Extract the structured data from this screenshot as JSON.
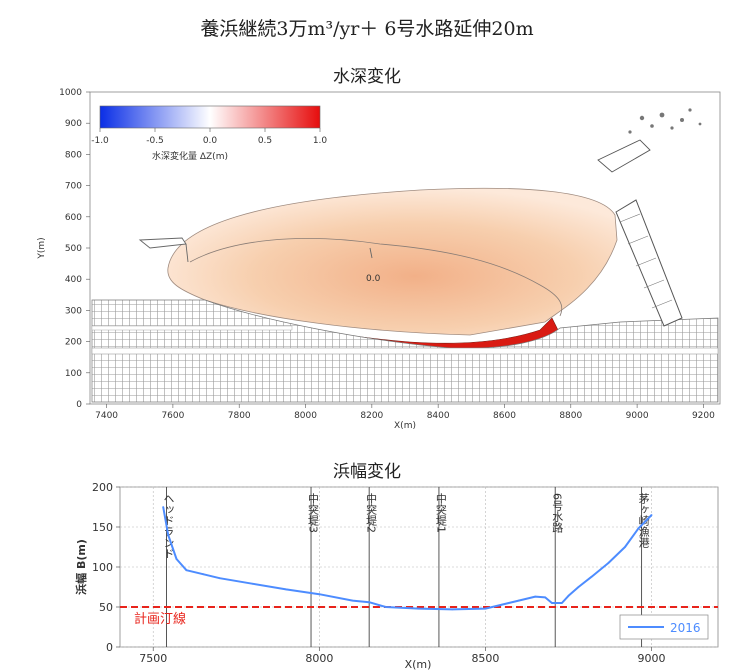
{
  "title": "養浜継続3万m³/yr＋ 6号水路延伸20m",
  "map": {
    "title": "水深変化",
    "xlabel": "X(m)",
    "ylabel": "Y(m)",
    "xticks": [
      "7400",
      "7600",
      "7800",
      "8000",
      "8200",
      "8400",
      "8600",
      "8800",
      "9000",
      "9200"
    ],
    "yticks": [
      "0",
      "100",
      "200",
      "300",
      "400",
      "500",
      "600",
      "700",
      "800",
      "900",
      "1000"
    ],
    "colorbar": {
      "ticks": [
        "-1.0",
        "-0.5",
        "0.0",
        "0.5",
        "1.0"
      ],
      "label": "水深変化量 ΔZ(m)",
      "colors": {
        "min": "#0a2ee6",
        "mid": "#ffffff",
        "max": "#e60d0d"
      }
    },
    "contour_label": "0.0",
    "accretion_color": "#d91a12"
  },
  "chart_data": {
    "type": "line",
    "title": "浜幅変化",
    "xlabel": "X(m)",
    "ylabel": "浜幅 B(m)",
    "xlim": [
      7400,
      9200
    ],
    "ylim": [
      0,
      200
    ],
    "xticks": [
      7500,
      8000,
      8500,
      9000
    ],
    "yticks": [
      0,
      50,
      100,
      150,
      200
    ],
    "grid": true,
    "legend_position": "bottom-right",
    "series": [
      {
        "name": "2016",
        "color": "#4d8cff",
        "x": [
          7530,
          7545,
          7570,
          7600,
          7650,
          7700,
          7800,
          7900,
          8000,
          8100,
          8150,
          8200,
          8300,
          8400,
          8500,
          8550,
          8600,
          8650,
          8680,
          8700,
          8730,
          8750,
          8780,
          8820,
          8870,
          8920,
          8960,
          9000
        ],
        "y": [
          175,
          140,
          110,
          96,
          91,
          86,
          79,
          72,
          66,
          58,
          56,
          50,
          48,
          47,
          48,
          53,
          58,
          63,
          62,
          55,
          55,
          64,
          75,
          88,
          105,
          125,
          148,
          165
        ]
      }
    ],
    "reference_line": {
      "label": "計画汀線",
      "y": 50,
      "color": "#e8231b"
    },
    "annotations": [
      {
        "text": "ヘッドランド",
        "x": 7540
      },
      {
        "text": "中突堤3",
        "x": 7975
      },
      {
        "text": "中突堤2",
        "x": 8150
      },
      {
        "text": "中突堤1",
        "x": 8360
      },
      {
        "text": "6号水路",
        "x": 8710
      },
      {
        "text": "茅ヶ崎漁港",
        "x": 8970
      }
    ]
  }
}
